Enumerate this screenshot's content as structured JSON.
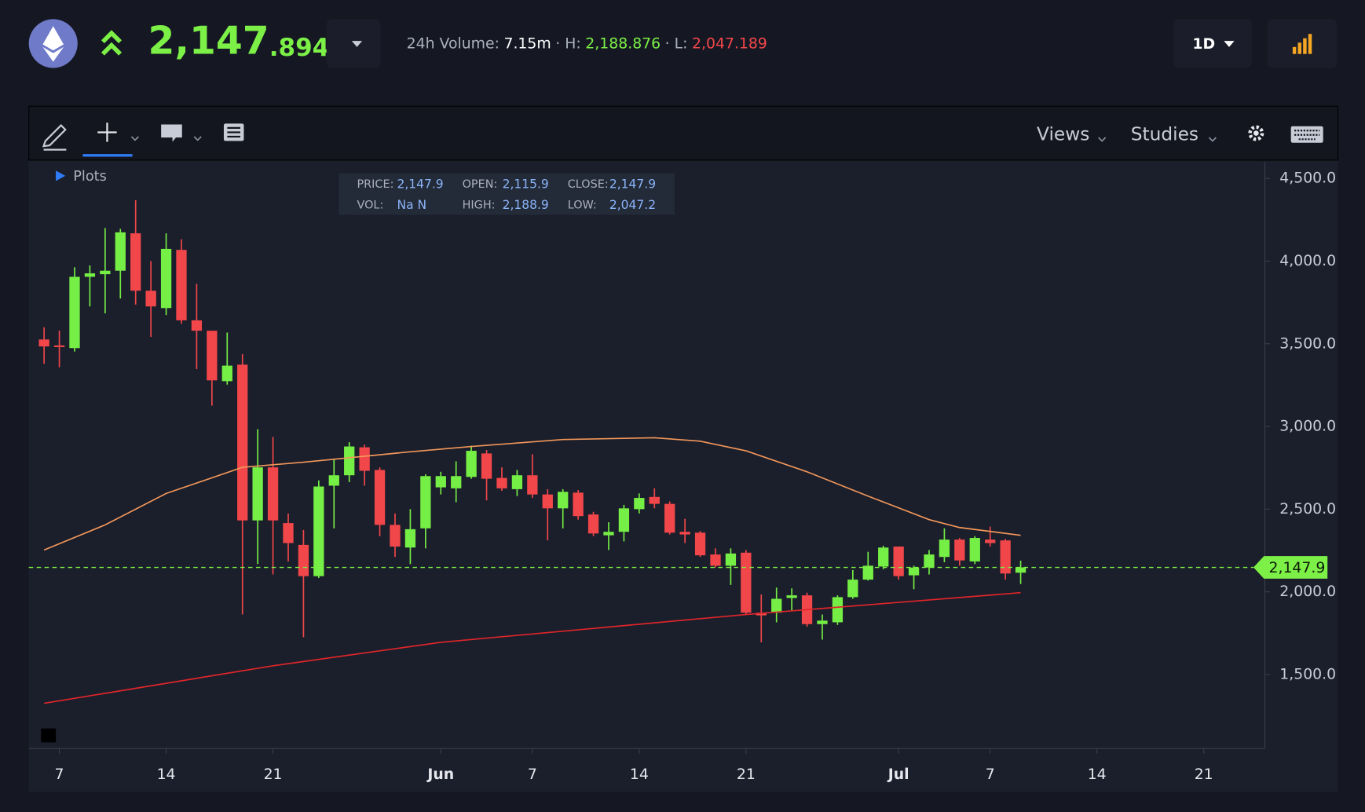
{
  "header": {
    "price": {
      "whole": "2,147",
      "fraction": ".894"
    },
    "volume_label": "24h Volume:",
    "volume": "7.15m",
    "high_label": "· H:",
    "high": "2,188.876",
    "low_label": "· L:",
    "low": "2,047.189",
    "interval": "1D"
  },
  "toolbar": {
    "views": "Views",
    "studies": "Studies"
  },
  "plots_label": "Plots",
  "tooltip": [
    {
      "label": "PRICE:",
      "value": "2,147.9"
    },
    {
      "label": "OPEN:",
      "value": "2,115.9"
    },
    {
      "label": "CLOSE:",
      "value": "2,147.9"
    },
    {
      "label": "VOL:",
      "value": "Na N"
    },
    {
      "label": "HIGH:",
      "value": "2,188.9"
    },
    {
      "label": "LOW:",
      "value": "2,047.2"
    }
  ],
  "chart_data": {
    "type": "candlestick",
    "x": [
      "05-06",
      "05-07",
      "05-08",
      "05-09",
      "05-10",
      "05-11",
      "05-12",
      "05-13",
      "05-14",
      "05-15",
      "05-16",
      "05-17",
      "05-18",
      "05-19",
      "05-20",
      "05-21",
      "05-22",
      "05-23",
      "05-24",
      "05-25",
      "05-26",
      "05-27",
      "05-28",
      "05-29",
      "05-30",
      "05-31",
      "06-01",
      "06-02",
      "06-03",
      "06-04",
      "06-05",
      "06-06",
      "06-07",
      "06-08",
      "06-09",
      "06-10",
      "06-11",
      "06-12",
      "06-13",
      "06-14",
      "06-15",
      "06-16",
      "06-17",
      "06-18",
      "06-19",
      "06-20",
      "06-21",
      "06-22",
      "06-23",
      "06-24",
      "06-25",
      "06-26",
      "06-27",
      "06-28",
      "06-29",
      "06-30",
      "07-01",
      "07-02",
      "07-03",
      "07-04",
      "07-05",
      "07-06",
      "07-07",
      "07-08",
      "07-09"
    ],
    "open": [
      3526,
      3490,
      3474,
      3905,
      3921,
      3942,
      4168,
      3821,
      3716,
      4068,
      3642,
      3579,
      3274,
      3374,
      2432,
      2753,
      2416,
      2284,
      2095,
      2642,
      2705,
      2874,
      2737,
      2405,
      2268,
      2384,
      2632,
      2626,
      2695,
      2837,
      2689,
      2621,
      2705,
      2589,
      2505,
      2600,
      2468,
      2342,
      2363,
      2500,
      2574,
      2532,
      2363,
      2358,
      2226,
      2158,
      2237,
      1874,
      1874,
      1963,
      1979,
      1805,
      1816,
      1968,
      2074,
      2153,
      2274,
      2100,
      2147,
      2211,
      2316,
      2184,
      2316,
      2311,
      2115.9
    ],
    "high": [
      3600,
      3580,
      3963,
      3974,
      4200,
      4195,
      4368,
      4000,
      4168,
      4132,
      3863,
      3579,
      3568,
      3437,
      2984,
      2937,
      2474,
      2374,
      2674,
      2800,
      2905,
      2890,
      2753,
      2474,
      2500,
      2711,
      2726,
      2789,
      2884,
      2858,
      2753,
      2737,
      2832,
      2621,
      2621,
      2616,
      2484,
      2421,
      2526,
      2595,
      2626,
      2547,
      2442,
      2368,
      2263,
      2263,
      2253,
      1984,
      2026,
      2021,
      1995,
      1863,
      1979,
      2132,
      2242,
      2279,
      2274,
      2158,
      2253,
      2384,
      2326,
      2337,
      2395,
      2321,
      2188.9
    ],
    "low": [
      3379,
      3358,
      3453,
      3726,
      3684,
      3774,
      3737,
      3542,
      3674,
      3621,
      3347,
      3126,
      3253,
      1863,
      2168,
      2105,
      2184,
      1726,
      2084,
      2384,
      2663,
      2642,
      2337,
      2211,
      2168,
      2263,
      2589,
      2542,
      2684,
      2553,
      2611,
      2579,
      2568,
      2311,
      2384,
      2437,
      2337,
      2253,
      2305,
      2474,
      2505,
      2347,
      2295,
      2211,
      2147,
      2042,
      1863,
      1695,
      1816,
      1884,
      1789,
      1711,
      1800,
      1958,
      2068,
      2137,
      2074,
      2016,
      2105,
      2179,
      2158,
      2168,
      2274,
      2074,
      2047.2
    ],
    "close": [
      3484,
      3480,
      3905,
      3926,
      3942,
      4174,
      3821,
      3726,
      4074,
      3642,
      3579,
      3279,
      3368,
      2432,
      2753,
      2432,
      2295,
      2095,
      2637,
      2705,
      2879,
      2732,
      2405,
      2274,
      2379,
      2700,
      2700,
      2700,
      2853,
      2684,
      2626,
      2705,
      2589,
      2505,
      2605,
      2458,
      2353,
      2363,
      2505,
      2568,
      2532,
      2358,
      2347,
      2221,
      2158,
      2232,
      1874,
      1858,
      1958,
      1979,
      1805,
      1826,
      1968,
      2074,
      2158,
      2268,
      2095,
      2147,
      2226,
      2316,
      2190,
      2326,
      2295,
      2111,
      2147.9
    ],
    "up_color": "#75ee45",
    "down_color": "#f2474a",
    "lines": [
      {
        "color": "#f2975a",
        "x": [
          "05-06",
          "05-10",
          "05-14",
          "05-19",
          "05-23",
          "05-30",
          "06-03",
          "06-09",
          "06-15",
          "06-18",
          "06-21",
          "06-25",
          "06-29",
          "07-03",
          "07-05",
          "07-09"
        ],
        "values": [
          2253,
          2405,
          2595,
          2753,
          2784,
          2847,
          2879,
          2921,
          2932,
          2911,
          2853,
          2726,
          2579,
          2437,
          2389,
          2342
        ]
      },
      {
        "color": "#e0262a",
        "x": [
          "05-06",
          "05-21",
          "06-01",
          "06-21",
          "07-09"
        ],
        "values": [
          1326,
          1553,
          1695,
          1863,
          1995
        ]
      }
    ],
    "price_line": {
      "value": 2147.9,
      "label": "2,147.9"
    },
    "price_line_color": "#7cf046",
    "xlim": [
      "05-05",
      "07-25"
    ],
    "xticks": [
      {
        "value": "05-07",
        "label": "7"
      },
      {
        "value": "05-14",
        "label": "14"
      },
      {
        "value": "05-21",
        "label": "21"
      },
      {
        "value": "06-01",
        "label": "Jun"
      },
      {
        "value": "06-07",
        "label": "7"
      },
      {
        "value": "06-14",
        "label": "14"
      },
      {
        "value": "06-21",
        "label": "21"
      },
      {
        "value": "07-01",
        "label": "Jul"
      },
      {
        "value": "07-07",
        "label": "7"
      },
      {
        "value": "07-14",
        "label": "14"
      },
      {
        "value": "07-21",
        "label": "21"
      }
    ],
    "ylim": [
      1053,
      4579
    ],
    "yticks": [
      {
        "value": 1500,
        "label": "1,500.0"
      },
      {
        "value": 2000,
        "label": "2,000.0"
      },
      {
        "value": 2500,
        "label": "2,500.0"
      },
      {
        "value": 3000,
        "label": "3,000.0"
      },
      {
        "value": 3500,
        "label": "3,500.0"
      },
      {
        "value": 4000,
        "label": "4,000.0"
      },
      {
        "value": 4500,
        "label": "4,500.0"
      }
    ],
    "grid": false
  }
}
